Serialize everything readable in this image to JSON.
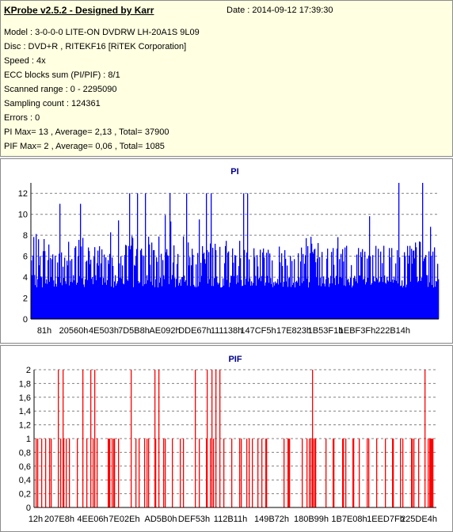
{
  "app": {
    "title": "KProbe v2.5.2 - Designed by Karr",
    "date_text": "Date : 2014-09-12 17:39:30"
  },
  "info": {
    "model": "Model : 3-0-0-0 LITE-ON DVDRW LH-20A1S   9L09",
    "disc": "Disc : DVD+R , RITEKF16 [RiTEK Corporation]",
    "speed": "Speed : 4x",
    "ecc": "ECC blocks sum (PI/PIF) : 8/1",
    "range": "Scanned range : 0 - 2295090",
    "sampling": "Sampling count : 124361",
    "errors": "Errors : 0",
    "pi": "PI Max= 13 , Average= 2,13 , Total= 37900",
    "pif": "PIF Max= 2 , Average= 0,06 , Total= 1085"
  },
  "colors": {
    "pi": "#0000ff",
    "pif": "#ff0000",
    "grid": "#808080",
    "panel": "#ffffe1"
  },
  "chart_data": [
    {
      "type": "bar",
      "title": "PI",
      "xlabel": "",
      "ylabel": "",
      "ylim": [
        0,
        13
      ],
      "y_ticks": [
        "0",
        "2",
        "4",
        "6",
        "8",
        "10",
        "12"
      ],
      "x_ticks": [
        "81h",
        "20560h",
        "4E503h",
        "7D5B8h",
        "AE092h",
        "DDE67h",
        "111138h",
        "147CF5h",
        "17E823h",
        "1B53F1h",
        "1EBF3Fh",
        "222B14h"
      ],
      "x_range_hex": [
        "81h",
        "2305B2h"
      ],
      "grid": "dashed horizontal",
      "max": 13,
      "average": 2.13,
      "baseline_fill_level": 3,
      "typical_peak_level": 5,
      "notable_peaks": [
        {
          "position": 0.07,
          "value": 11
        },
        {
          "position": 0.12,
          "value": 11
        },
        {
          "position": 0.24,
          "value": 12
        },
        {
          "position": 0.26,
          "value": 12
        },
        {
          "position": 0.28,
          "value": 12
        },
        {
          "position": 0.34,
          "value": 12
        },
        {
          "position": 0.38,
          "value": 12
        },
        {
          "position": 0.43,
          "value": 12
        },
        {
          "position": 0.44,
          "value": 12
        },
        {
          "position": 0.52,
          "value": 12
        },
        {
          "position": 0.53,
          "value": 12
        },
        {
          "position": 0.9,
          "value": 13
        },
        {
          "position": 0.96,
          "value": 13
        }
      ]
    },
    {
      "type": "bar",
      "title": "PIF",
      "xlabel": "",
      "ylabel": "",
      "ylim": [
        0,
        2
      ],
      "y_ticks": [
        "0",
        "0,2",
        "0,4",
        "0,6",
        "0,8",
        "1",
        "1,2",
        "1,4",
        "1,6",
        "1,8",
        "2"
      ],
      "x_ticks": [
        "12h",
        "207E8h",
        "4EE06h",
        "7E02Eh",
        "AD5B0h",
        "DEF53h",
        "112B11h",
        "149B72h",
        "180B99h",
        "1B7E08h",
        "1EED7Fh",
        "225DE4h"
      ],
      "x_range_hex": [
        "12h",
        "2305B2h"
      ],
      "grid": "dashed horizontal",
      "max": 2,
      "average": 0.06,
      "spikes_value_2_positions": [
        0.06,
        0.07,
        0.12,
        0.14,
        0.15,
        0.24,
        0.3,
        0.31,
        0.4,
        0.43,
        0.44,
        0.45,
        0.46,
        0.69,
        0.97
      ]
    }
  ]
}
